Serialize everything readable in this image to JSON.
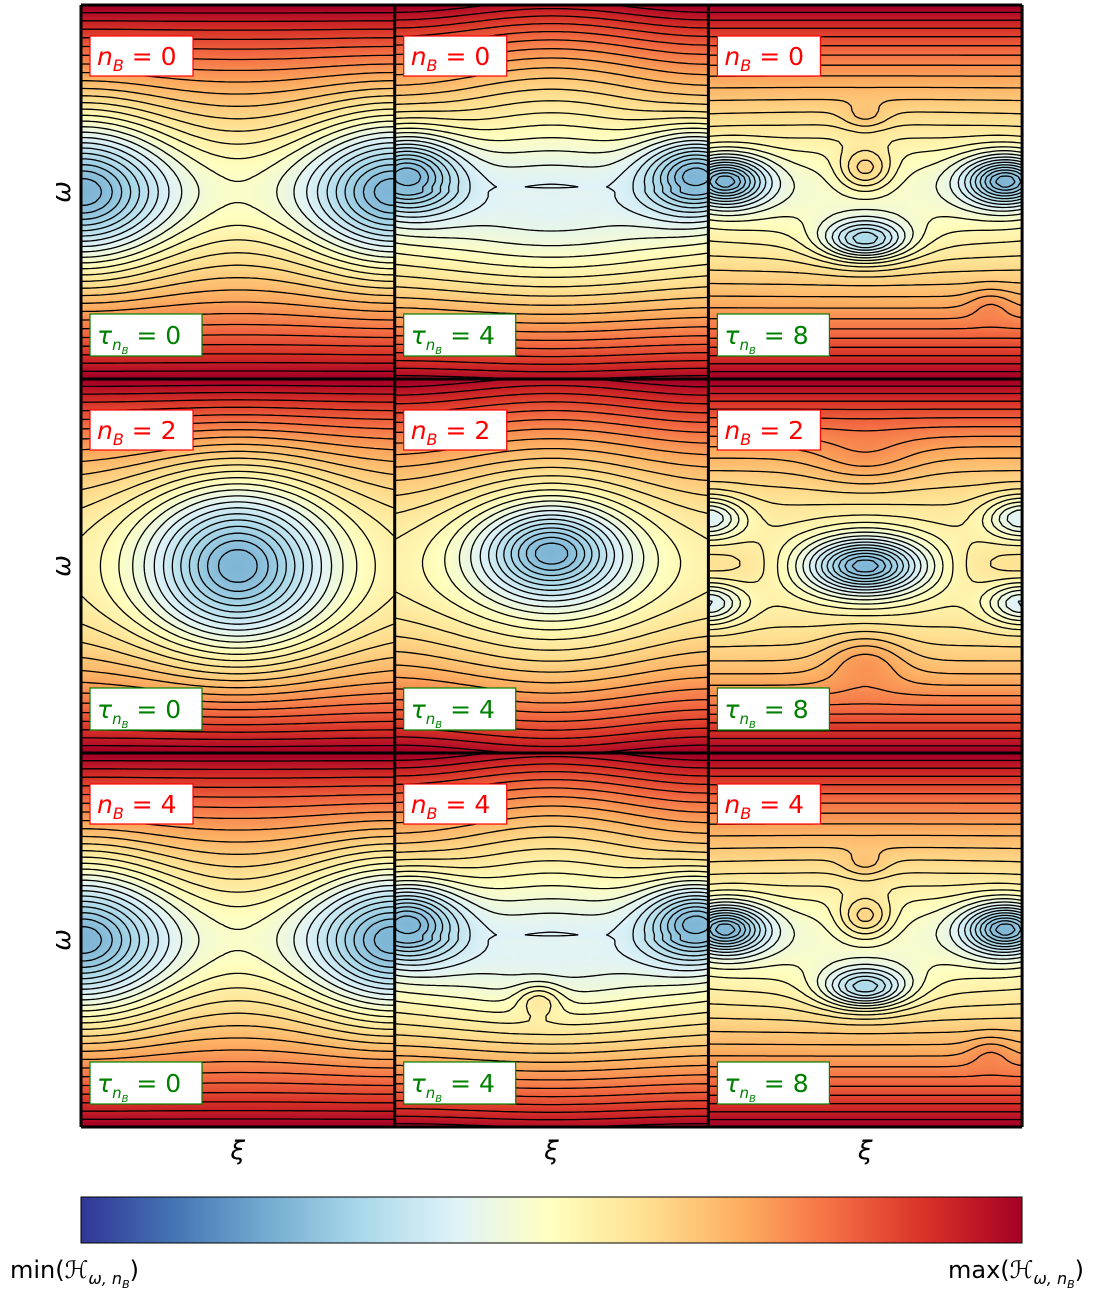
{
  "chart_data": {
    "type": "heatmap",
    "grid": {
      "rows": 3,
      "cols": 3,
      "grid_lines": false,
      "contour_lines": true
    },
    "xlabel": "ξ",
    "ylabel": "ω",
    "rows": [
      {
        "n_B": "n_B = 0",
        "panels": [
          {
            "tau": "τ_{n_B} = 0"
          },
          {
            "tau": "τ_{n_B} = 4"
          },
          {
            "tau": "τ_{n_B} = 8"
          }
        ]
      },
      {
        "n_B": "n_B = 2",
        "panels": [
          {
            "tau": "τ_{n_B} = 0"
          },
          {
            "tau": "τ_{n_B} = 4"
          },
          {
            "tau": "τ_{n_B} = 8"
          }
        ]
      },
      {
        "n_B": "n_B = 4",
        "panels": [
          {
            "tau": "τ_{n_B} = 0"
          },
          {
            "tau": "τ_{n_B} = 4"
          },
          {
            "tau": "τ_{n_B} = 8"
          }
        ]
      }
    ],
    "n_B_values": [
      0,
      2,
      4
    ],
    "tau_values": [
      0,
      4,
      8
    ],
    "colorbar": {
      "colormap": "RdYlBu_r",
      "min_label": "min(ℋ_{ω, n_B})",
      "max_label": "max(ℋ_{ω, n_B})",
      "colors": [
        "#313695",
        "#4575b4",
        "#74add1",
        "#abd9e9",
        "#e0f3f8",
        "#ffffbf",
        "#fee090",
        "#fdae61",
        "#f46d43",
        "#d73027",
        "#a50026"
      ]
    },
    "tag_colors": {
      "n_B": "#ff0000",
      "tau": "#008000"
    }
  }
}
